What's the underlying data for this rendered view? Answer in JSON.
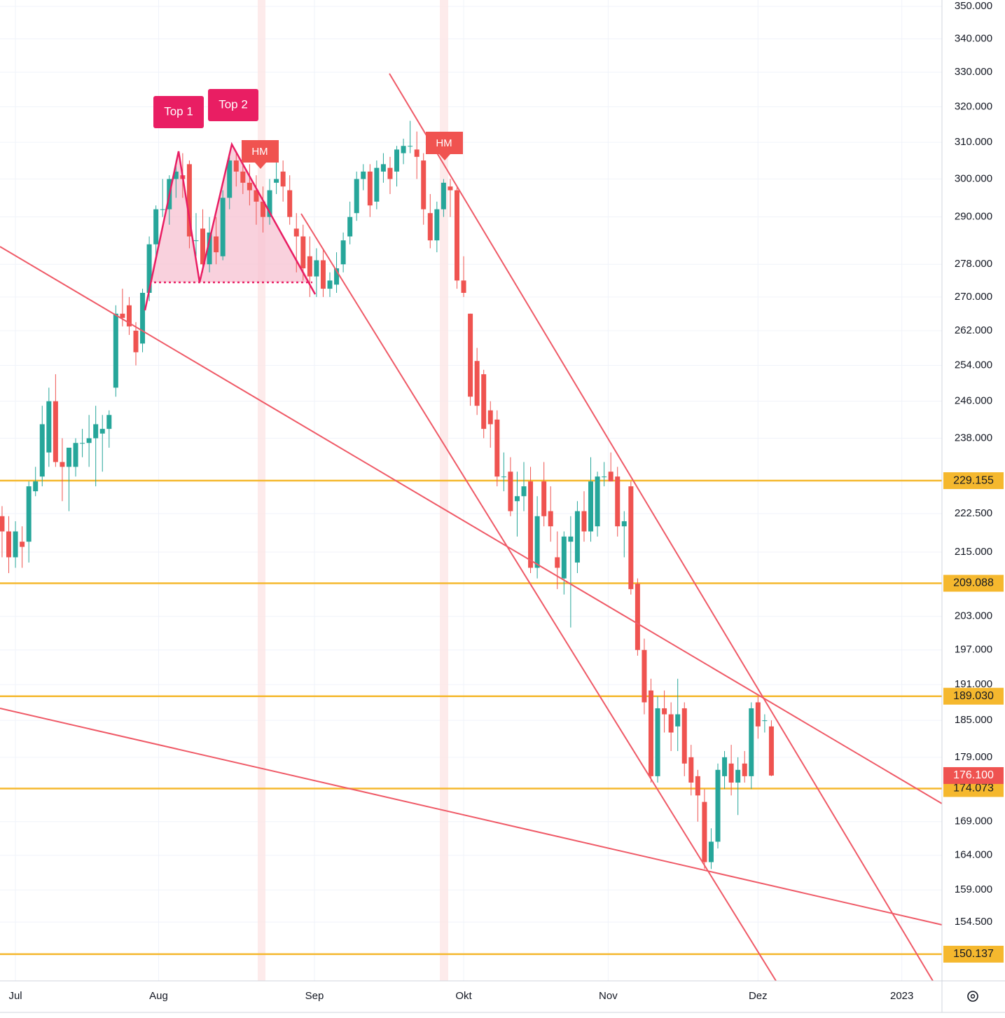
{
  "chart_data": {
    "type": "candlestick",
    "ylim": [
      146.6,
      352
    ],
    "log_scale": true,
    "yticks": [
      {
        "value": 350,
        "label": "350.000"
      },
      {
        "value": 340,
        "label": "340.000"
      },
      {
        "value": 330,
        "label": "330.000"
      },
      {
        "value": 320,
        "label": "320.000"
      },
      {
        "value": 310,
        "label": "310.000"
      },
      {
        "value": 300,
        "label": "300.000"
      },
      {
        "value": 290,
        "label": "290.000"
      },
      {
        "value": 278,
        "label": "278.000"
      },
      {
        "value": 270,
        "label": "270.000"
      },
      {
        "value": 262,
        "label": "262.000"
      },
      {
        "value": 254,
        "label": "254.000"
      },
      {
        "value": 246,
        "label": "246.000"
      },
      {
        "value": 238,
        "label": "238.000"
      },
      {
        "value": 222.5,
        "label": "222.500"
      },
      {
        "value": 215,
        "label": "215.000"
      },
      {
        "value": 203,
        "label": "203.000"
      },
      {
        "value": 197,
        "label": "197.000"
      },
      {
        "value": 191,
        "label": "191.000"
      },
      {
        "value": 185,
        "label": "185.000"
      },
      {
        "value": 179,
        "label": "179.000"
      },
      {
        "value": 169,
        "label": "169.000"
      },
      {
        "value": 164,
        "label": "164.000"
      },
      {
        "value": 159,
        "label": "159.000"
      },
      {
        "value": 154.5,
        "label": "154.500"
      }
    ],
    "xlim": [
      -0.31,
      140.5
    ],
    "xticks": [
      {
        "value": 2.0,
        "label": "Jul"
      },
      {
        "value": 23.4,
        "label": "Aug"
      },
      {
        "value": 46.7,
        "label": "Sep"
      },
      {
        "value": 69.0,
        "label": "Okt"
      },
      {
        "value": 90.6,
        "label": "Nov"
      },
      {
        "value": 113.0,
        "label": "Dez"
      },
      {
        "value": 134.5,
        "label": "2023"
      }
    ],
    "grid": true,
    "up_color": "#26a69a",
    "down_color": "#ef5350",
    "level_color": "#f5b82e",
    "levels": [
      {
        "value": 229.155,
        "label": "229.155"
      },
      {
        "value": 209.088,
        "label": "209.088"
      },
      {
        "value": 189.03,
        "label": "189.030"
      },
      {
        "value": 174.073,
        "label": "174.073"
      },
      {
        "value": 150.137,
        "label": "150.137"
      }
    ],
    "last_price": {
      "value": 176.1,
      "label": "176.100"
    },
    "annotations": [
      "Top 1",
      "Top 2",
      "HM",
      "HM"
    ],
    "open": [
      222,
      219,
      214,
      217,
      217,
      227,
      230,
      235,
      246,
      233,
      232,
      232,
      237,
      237,
      238,
      239,
      240,
      249,
      266,
      268,
      262,
      259,
      271,
      283,
      292,
      292,
      300,
      301,
      304,
      284,
      287,
      278,
      285,
      280,
      295,
      305,
      302,
      299,
      297,
      294,
      290,
      299,
      302,
      297,
      287,
      285,
      280,
      275,
      279,
      272,
      273,
      278,
      285,
      291,
      300,
      302,
      294,
      302,
      303,
      302,
      307,
      309,
      308,
      305,
      291,
      284,
      292,
      298,
      297,
      274,
      266,
      255,
      252,
      244,
      242,
      230,
      231,
      225,
      226,
      229,
      212,
      229,
      223,
      214,
      210,
      217,
      213,
      223,
      219,
      220,
      230,
      231,
      230,
      220,
      228,
      209,
      197,
      190,
      176,
      187,
      186,
      184,
      187,
      179,
      176,
      172,
      163,
      166,
      176,
      178,
      175,
      178,
      176,
      188,
      185,
      184
    ],
    "high": [
      224,
      222,
      221,
      220,
      229,
      232,
      245,
      249,
      252,
      238,
      236,
      238,
      240,
      243,
      245,
      243,
      244,
      268,
      272,
      270,
      264,
      272,
      285,
      293,
      300,
      301,
      305,
      307,
      305,
      291,
      292,
      290,
      290,
      297,
      306,
      307,
      306,
      304,
      301,
      298,
      300,
      305,
      305,
      301,
      291,
      288,
      285,
      282,
      282,
      276,
      281,
      286,
      294,
      302,
      304,
      304,
      305,
      307,
      306,
      309,
      311,
      316,
      313,
      307,
      296,
      294,
      300,
      300,
      298,
      280,
      266,
      258,
      253,
      246,
      244,
      235,
      234,
      231,
      233,
      232,
      226,
      233,
      228,
      219,
      219,
      222,
      225,
      227,
      234,
      231,
      233,
      235,
      232,
      223,
      229,
      210,
      199,
      192,
      189,
      190,
      188,
      192,
      188,
      181,
      177,
      174,
      168,
      178,
      180,
      181,
      179,
      180,
      188,
      189,
      186,
      185
    ],
    "low": [
      214,
      211,
      212,
      212,
      213,
      226,
      228,
      232,
      232,
      225,
      223,
      230,
      234,
      232,
      228,
      231,
      236,
      247,
      263,
      261,
      254,
      257,
      269,
      280,
      290,
      288,
      295,
      295,
      282,
      280,
      276,
      276,
      278,
      279,
      292,
      298,
      296,
      293,
      288,
      286,
      288,
      296,
      294,
      288,
      276,
      274,
      270,
      270,
      270,
      270,
      271,
      276,
      283,
      289,
      297,
      290,
      292,
      299,
      296,
      298,
      304,
      307,
      300,
      288,
      282,
      281,
      290,
      290,
      272,
      270,
      245,
      243,
      238,
      236,
      228,
      227,
      222,
      218,
      223,
      211,
      210,
      220,
      217,
      208,
      207,
      201,
      211,
      217,
      217,
      218,
      228,
      229,
      218,
      214,
      207,
      196,
      186,
      175,
      175,
      183,
      180,
      180,
      176,
      173,
      169,
      162,
      162,
      165,
      174,
      173,
      170,
      175,
      174,
      182,
      183,
      176
    ],
    "close": [
      219,
      214,
      219,
      216,
      228,
      229,
      241,
      246,
      233,
      232,
      236,
      237,
      237,
      238,
      241,
      240,
      243,
      266,
      265,
      263,
      257,
      271,
      283,
      292,
      292,
      300,
      302,
      300,
      285,
      284,
      278,
      286,
      281,
      295,
      305,
      302,
      299,
      297,
      294,
      290,
      297,
      300,
      298,
      290,
      285,
      277,
      275,
      279,
      272,
      274,
      277,
      284,
      290,
      300,
      302,
      293,
      303,
      304,
      300,
      308,
      309,
      309,
      306,
      292,
      284,
      292,
      299,
      297,
      274,
      271,
      247,
      245,
      240,
      241,
      230,
      230,
      223,
      226,
      228,
      212,
      222,
      222,
      220,
      212,
      218,
      218,
      223,
      219,
      229,
      230,
      230,
      229,
      220,
      221,
      208,
      197,
      188,
      176,
      187,
      186,
      183,
      186,
      178,
      175,
      173,
      163,
      166,
      177,
      179,
      175,
      177,
      176,
      187,
      184,
      185,
      176.1
    ]
  }
}
